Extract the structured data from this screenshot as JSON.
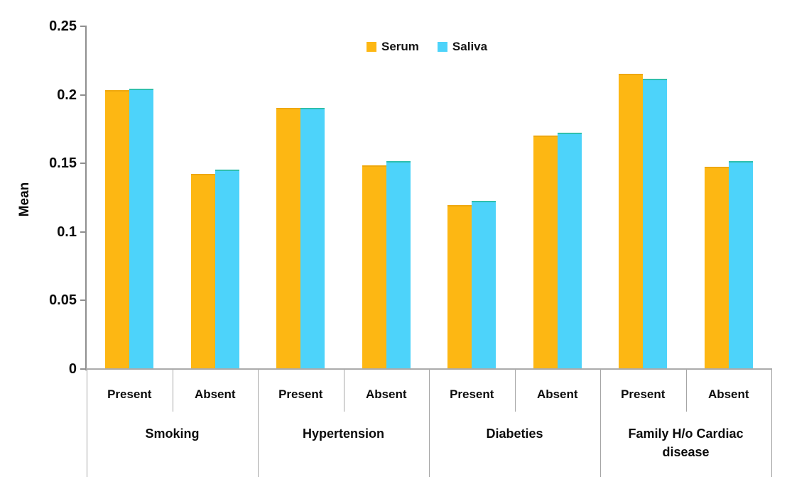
{
  "chart_data": {
    "type": "bar",
    "title": "",
    "ylabel": "Mean",
    "ylim": [
      0,
      0.25
    ],
    "ytick_labels": [
      "0",
      "0.05",
      "0.1",
      "0.15",
      "0.2",
      "0.25"
    ],
    "yticks": [
      0,
      0.05,
      0.1,
      0.15,
      0.2,
      0.25
    ],
    "grid": false,
    "legend_position": "top-center",
    "groups": [
      {
        "label": "Smoking",
        "subcategories": [
          "Present",
          "Absent"
        ]
      },
      {
        "label": "Hypertension",
        "subcategories": [
          "Present",
          "Absent"
        ]
      },
      {
        "label": "Diabeties",
        "subcategories": [
          "Present",
          "Absent"
        ]
      },
      {
        "label": "Family H/o Cardiac disease",
        "subcategories": [
          "Present",
          "Absent"
        ]
      }
    ],
    "categories": [
      "Smoking Present",
      "Smoking Absent",
      "Hypertension Present",
      "Hypertension Absent",
      "Diabeties Present",
      "Diabeties Absent",
      "Family H/o Cardiac disease Present",
      "Family H/o Cardiac disease Absent"
    ],
    "series": [
      {
        "name": "Serum",
        "color": "#FDB713",
        "edge_color": "#EFA80E",
        "values": [
          0.203,
          0.142,
          0.19,
          0.148,
          0.119,
          0.17,
          0.215,
          0.147
        ]
      },
      {
        "name": "Saliva",
        "color": "#4DD3FA",
        "edge_color": "#2FBFAD",
        "values": [
          0.204,
          0.145,
          0.19,
          0.151,
          0.122,
          0.172,
          0.211,
          0.151
        ]
      }
    ]
  },
  "colors": {
    "axis_line": "#8f8f8f",
    "zero_line": "#ababab",
    "divider": "#a6a6a6",
    "text": "#0b0b0b",
    "background": "#ffffff"
  }
}
